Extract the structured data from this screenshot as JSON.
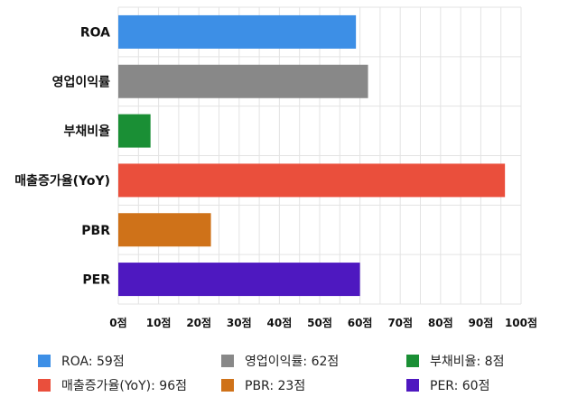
{
  "chart_data": {
    "type": "bar",
    "orientation": "horizontal",
    "categories": [
      "ROA",
      "영업이익률",
      "부채비율",
      "매출증가율(YoY)",
      "PBR",
      "PER"
    ],
    "values": [
      59,
      62,
      8,
      96,
      23,
      60
    ],
    "colors": [
      "#3d8fe6",
      "#888888",
      "#1a8f35",
      "#ea4f3c",
      "#cf7219",
      "#4e18c0"
    ],
    "xlim": [
      0,
      100
    ],
    "x_ticks": [
      0,
      10,
      20,
      30,
      40,
      50,
      60,
      70,
      80,
      90,
      100
    ],
    "x_tick_suffix": "점",
    "grid": true,
    "legend_position": "bottom",
    "title": "",
    "xlabel": "",
    "ylabel": ""
  },
  "legend": [
    {
      "label": "ROA: 59점",
      "color": "#3d8fe6"
    },
    {
      "label": "영업이익률: 62점",
      "color": "#888888"
    },
    {
      "label": "부채비율: 8점",
      "color": "#1a8f35"
    },
    {
      "label": "매출증가율(YoY): 96점",
      "color": "#ea4f3c"
    },
    {
      "label": "PBR: 23점",
      "color": "#cf7219"
    },
    {
      "label": "PER: 60점",
      "color": "#4e18c0"
    }
  ]
}
